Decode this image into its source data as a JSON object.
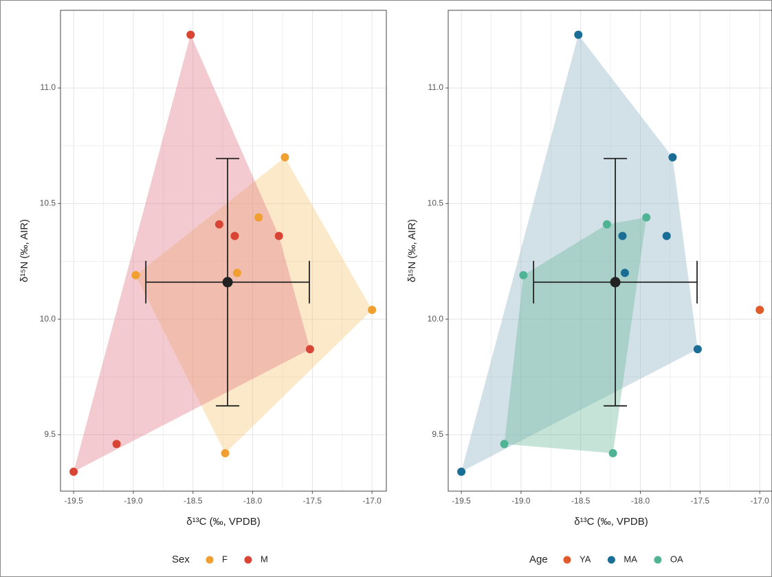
{
  "chart_data": [
    {
      "type": "scatter",
      "x_label": "δ¹³C (‰, VPDB)",
      "y_label": "δ¹⁵N (‰, AIR)",
      "legend_title": "Sex",
      "legend": "bottom",
      "grid": true,
      "xlim": [
        -19.61,
        -16.88
      ],
      "ylim": [
        9.256,
        11.336
      ],
      "xticks": [
        -19.5,
        {
          "value": -19,
          "label": "-19.0"
        },
        -18.5,
        {
          "value": -18,
          "label": "-18.0"
        },
        -17.5,
        {
          "value": -17,
          "label": "-17.0"
        }
      ],
      "yticks": [
        9.5,
        {
          "value": 10,
          "label": "10.0"
        },
        10.5,
        {
          "value": 11,
          "label": "11.0"
        }
      ],
      "series": [
        {
          "name": "F",
          "color": "#f0a030",
          "hull_color": "#f7c878",
          "x": [
            -17.73,
            -17.95,
            -18.98,
            -18.13,
            -17.0,
            -18.23
          ],
          "y": [
            10.7,
            10.44,
            10.19,
            10.2,
            10.04,
            9.42
          ]
        },
        {
          "name": "M",
          "color": "#d94535",
          "hull_color": "#e07a86",
          "x": [
            -18.52,
            -18.28,
            -18.15,
            -17.78,
            -17.52,
            -19.14,
            -19.5
          ],
          "y": [
            11.23,
            10.41,
            10.36,
            10.36,
            9.87,
            9.46,
            9.34
          ]
        }
      ],
      "mean": {
        "x": -18.21,
        "y": 10.16,
        "x_err": 0.685,
        "y_err": 0.535
      }
    },
    {
      "type": "scatter",
      "x_label": "δ¹³C (‰, VPDB)",
      "y_label": "δ¹⁵N (‰, AIR)",
      "legend_title": "Age",
      "legend": "bottom",
      "grid": true,
      "xlim": [
        -19.61,
        -16.88
      ],
      "ylim": [
        9.256,
        11.336
      ],
      "xticks": [
        -19.5,
        {
          "value": -19,
          "label": "-19.0"
        },
        -18.5,
        {
          "value": -18,
          "label": "-18.0"
        },
        -17.5,
        {
          "value": -17,
          "label": "-17.0"
        }
      ],
      "yticks": [
        9.5,
        {
          "value": 10,
          "label": "10.0"
        },
        10.5,
        {
          "value": 11,
          "label": "11.0"
        }
      ],
      "series": [
        {
          "name": "YA",
          "color": "#e05a2b",
          "hull_color": "#e89070",
          "x": [
            -17.0
          ],
          "y": [
            10.04
          ]
        },
        {
          "name": "MA",
          "color": "#1a6e96",
          "hull_color": "#8fb4c6",
          "x": [
            -18.52,
            -17.73,
            -18.15,
            -17.78,
            -18.13,
            -17.52,
            -19.5
          ],
          "y": [
            11.23,
            10.7,
            10.36,
            10.36,
            10.2,
            9.87,
            9.34
          ]
        },
        {
          "name": "OA",
          "color": "#4fb394",
          "hull_color": "#6fb89c",
          "x": [
            -18.28,
            -17.95,
            -18.98,
            -18.23,
            -19.14
          ],
          "y": [
            10.41,
            10.44,
            10.19,
            9.42,
            9.46
          ]
        }
      ],
      "mean": {
        "x": -18.21,
        "y": 10.16,
        "x_err": 0.685,
        "y_err": 0.535
      }
    }
  ]
}
